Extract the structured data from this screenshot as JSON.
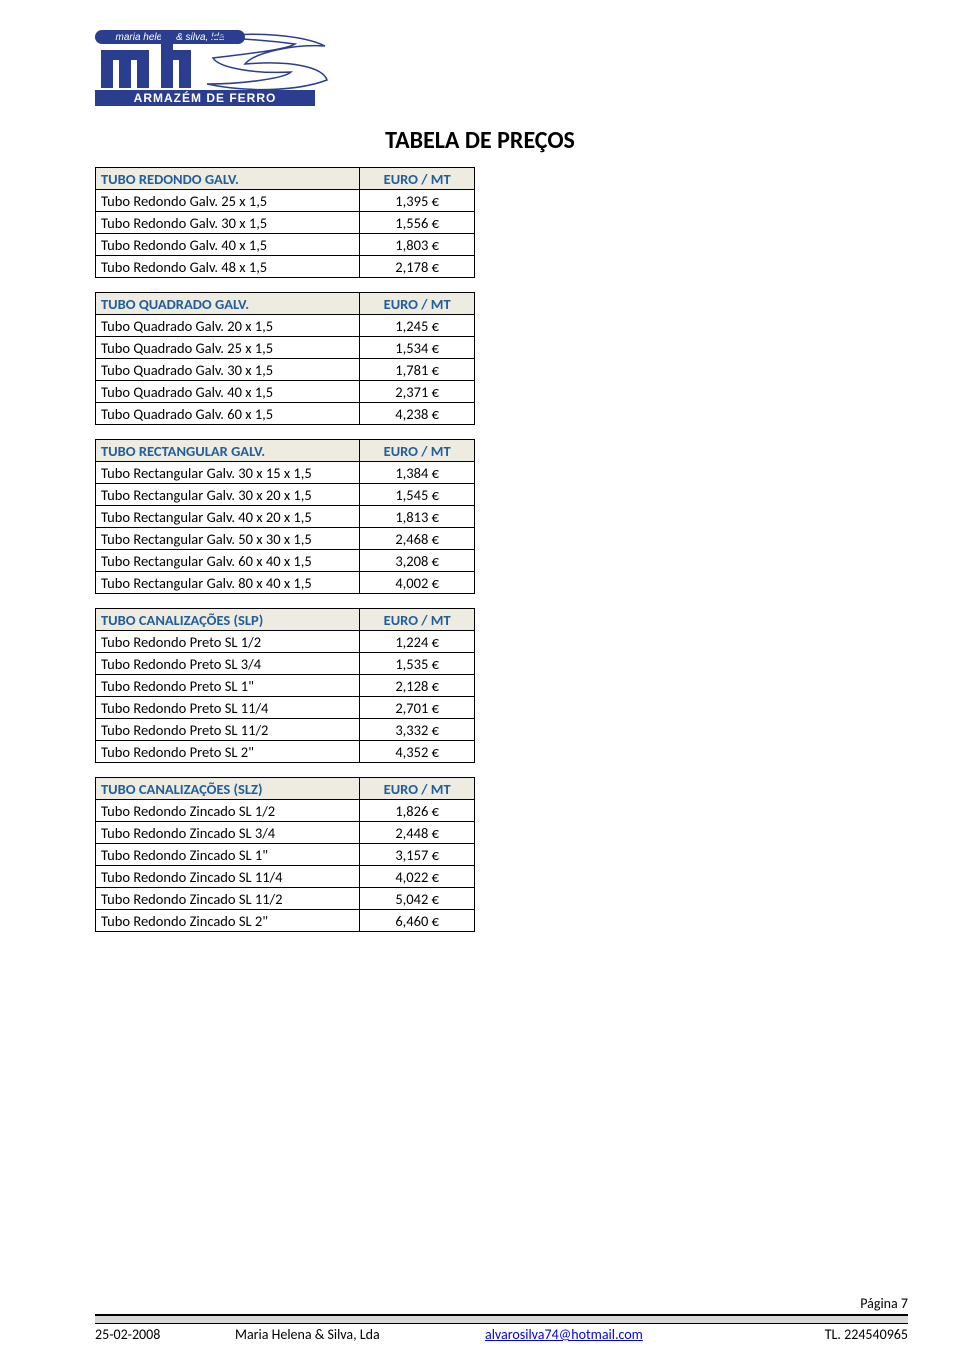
{
  "logo": {
    "top_text": "maria helena & silva, lda",
    "bottom_text": "ARMAZÉM DE FERRO",
    "bar_color": "#2a3d8f",
    "box_color": "#2a3d8f"
  },
  "title": "TABELA DE PREÇOS",
  "header_unit": "EURO / MT",
  "colors": {
    "header_bg": "#eeece0",
    "header_text": "#215e9e",
    "border": "#000000",
    "link": "#0000ee"
  },
  "sections": [
    {
      "header": "TUBO REDONDO GALV.",
      "rows": [
        {
          "label": "Tubo Redondo Galv. 25 x 1,5",
          "price": "1,395 €"
        },
        {
          "label": "Tubo Redondo Galv. 30 x 1,5",
          "price": "1,556 €"
        },
        {
          "label": "Tubo Redondo Galv. 40 x 1,5",
          "price": "1,803 €"
        },
        {
          "label": "Tubo Redondo Galv. 48 x 1,5",
          "price": "2,178 €"
        }
      ]
    },
    {
      "header": "TUBO QUADRADO GALV.",
      "rows": [
        {
          "label": "Tubo Quadrado Galv. 20 x 1,5",
          "price": "1,245 €"
        },
        {
          "label": "Tubo Quadrado Galv. 25 x 1,5",
          "price": "1,534 €"
        },
        {
          "label": "Tubo Quadrado Galv. 30 x 1,5",
          "price": "1,781 €"
        },
        {
          "label": "Tubo Quadrado Galv. 40 x 1,5",
          "price": "2,371 €"
        },
        {
          "label": "Tubo Quadrado Galv. 60 x 1,5",
          "price": "4,238 €"
        }
      ]
    },
    {
      "header": "TUBO RECTANGULAR GALV.",
      "rows": [
        {
          "label": "Tubo Rectangular Galv. 30 x 15 x 1,5",
          "price": "1,384 €"
        },
        {
          "label": "Tubo Rectangular Galv. 30 x 20 x 1,5",
          "price": "1,545 €"
        },
        {
          "label": "Tubo Rectangular Galv. 40 x 20 x 1,5",
          "price": "1,813 €"
        },
        {
          "label": "Tubo Rectangular Galv. 50 x 30 x 1,5",
          "price": "2,468 €"
        },
        {
          "label": "Tubo Rectangular Galv. 60 x 40 x 1,5",
          "price": "3,208 €"
        },
        {
          "label": "Tubo Rectangular Galv. 80 x 40 x 1,5",
          "price": "4,002 €"
        }
      ]
    },
    {
      "header": "TUBO CANALIZAÇÕES (SLP)",
      "rows": [
        {
          "label": "Tubo Redondo Preto SL 1/2",
          "price": "1,224 €"
        },
        {
          "label": "Tubo Redondo Preto SL 3/4",
          "price": "1,535 €"
        },
        {
          "label": "Tubo Redondo Preto SL 1\"",
          "price": "2,128 €"
        },
        {
          "label": "Tubo Redondo Preto SL 11/4",
          "price": "2,701 €"
        },
        {
          "label": "Tubo Redondo Preto SL 11/2",
          "price": "3,332 €"
        },
        {
          "label": "Tubo Redondo Preto SL 2\"",
          "price": "4,352 €"
        }
      ]
    },
    {
      "header": "TUBO CANALIZAÇÕES (SLZ)",
      "rows": [
        {
          "label": "Tubo Redondo Zincado SL 1/2",
          "price": "1,826 €"
        },
        {
          "label": "Tubo Redondo Zincado SL 3/4",
          "price": "2,448 €"
        },
        {
          "label": "Tubo Redondo Zincado SL 1\"",
          "price": "3,157 €"
        },
        {
          "label": "Tubo Redondo Zincado SL 11/4",
          "price": "4,022 €"
        },
        {
          "label": "Tubo Redondo Zincado SL 11/2",
          "price": "5,042 €"
        },
        {
          "label": "Tubo Redondo Zincado SL 2\"",
          "price": "6,460 €"
        }
      ]
    }
  ],
  "footer": {
    "page_label": "Página 7",
    "date": "25-02-2008",
    "company": "Maria Helena & Silva, Lda",
    "email": "alvarosilva74@hotmail.com",
    "phone": "TL. 224540965"
  }
}
